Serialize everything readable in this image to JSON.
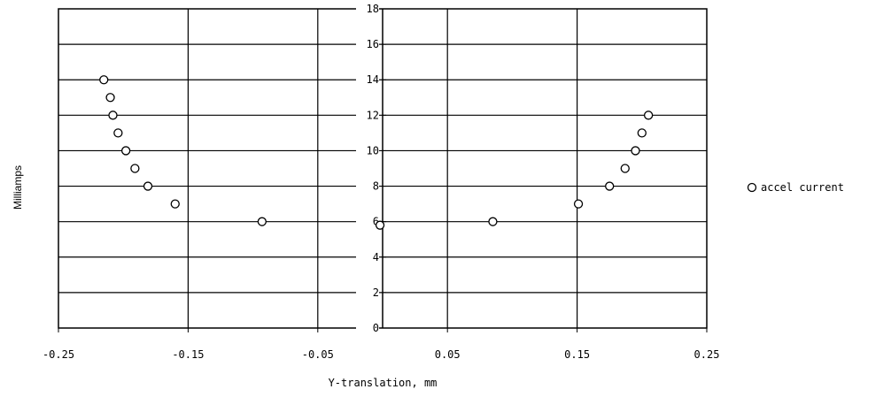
{
  "chart_data": {
    "type": "scatter",
    "title": "",
    "xlabel": "Y-translation, mm",
    "ylabel": "Milliamps",
    "xlim": [
      -0.25,
      0.25
    ],
    "ylim": [
      0,
      18
    ],
    "x_ticks": [
      -0.25,
      -0.15,
      -0.05,
      0.05,
      0.15,
      0.25
    ],
    "x_tick_labels": [
      "-0.25",
      "-0.15",
      "-0.05",
      "0.05",
      "0.15",
      "0.25"
    ],
    "y_ticks": [
      0,
      2,
      4,
      6,
      8,
      10,
      12,
      14,
      16,
      18
    ],
    "y_tick_labels": [
      "0",
      "2",
      "4",
      "6",
      "8",
      "10",
      "12",
      "14",
      "16",
      "18"
    ],
    "grid": true,
    "legend_position": "right",
    "series": [
      {
        "name": "accel current",
        "marker": "open-circle",
        "x": [
          -0.215,
          -0.21,
          -0.208,
          -0.204,
          -0.198,
          -0.191,
          -0.181,
          -0.16,
          -0.093,
          -0.002,
          0.085,
          0.151,
          0.175,
          0.187,
          0.195,
          0.2,
          0.205
        ],
        "y": [
          14,
          13,
          12,
          11,
          10,
          9,
          8,
          7,
          6,
          5.8,
          6,
          7,
          8,
          9,
          10,
          11,
          12
        ]
      }
    ]
  }
}
